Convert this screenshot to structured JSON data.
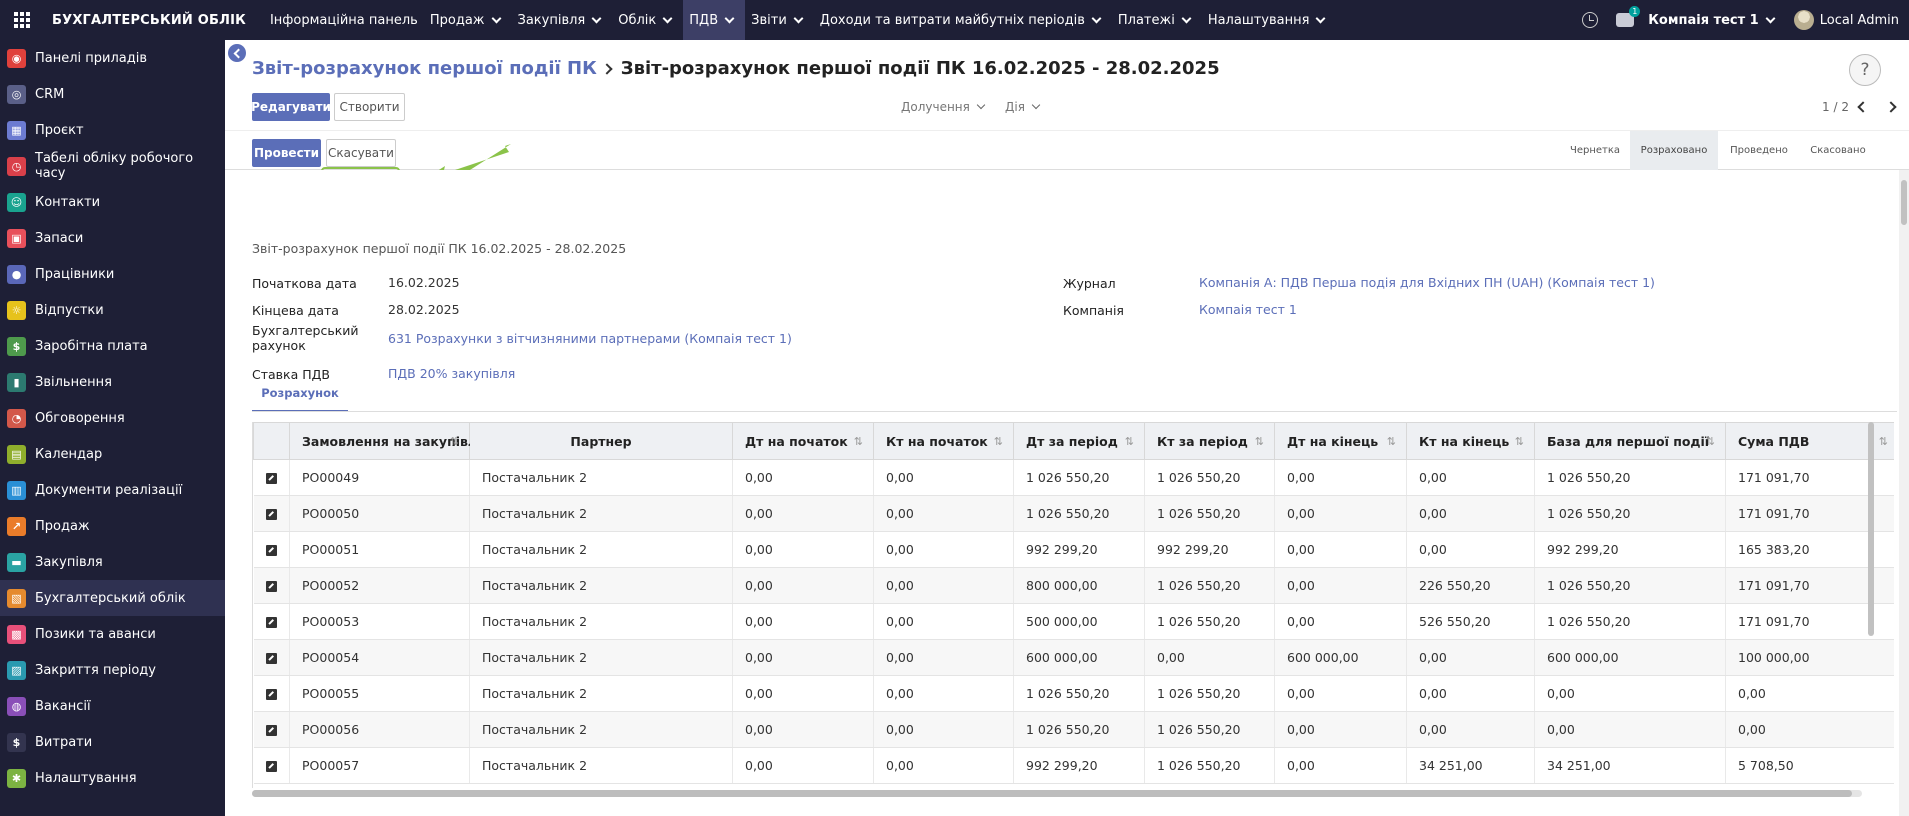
{
  "topbar": {
    "brand": "БУХГАЛТЕРСЬКИЙ ОБЛІК",
    "menu": [
      {
        "label": "Інформаційна панель",
        "has_dropdown": false
      },
      {
        "label": "Продаж",
        "has_dropdown": true
      },
      {
        "label": "Закупівля",
        "has_dropdown": true
      },
      {
        "label": "Облік",
        "has_dropdown": true
      },
      {
        "label": "ПДВ",
        "has_dropdown": true,
        "active": true
      },
      {
        "label": "Звіти",
        "has_dropdown": true
      },
      {
        "label": "Доходи та витрати майбутніх періодів",
        "has_dropdown": true
      },
      {
        "label": "Платежі",
        "has_dropdown": true
      },
      {
        "label": "Налаштування",
        "has_dropdown": true
      }
    ],
    "chat_badge": "1",
    "company": "Компаія тест 1",
    "user": "Local Admin"
  },
  "sidebar": {
    "items": [
      {
        "label": "Панелі приладів",
        "icon": "dashboard-icon",
        "color": "#e0413c"
      },
      {
        "label": "CRM",
        "icon": "crm-icon",
        "color": "#5a5f88"
      },
      {
        "label": "Проєкт",
        "icon": "project-icon",
        "color": "#6c7bd1"
      },
      {
        "label": "Табелі обліку робочого часу",
        "icon": "timesheet-icon",
        "color": "#d9404a"
      },
      {
        "label": "Контакти",
        "icon": "contacts-icon",
        "color": "#1aa38f"
      },
      {
        "label": "Запаси",
        "icon": "inventory-icon",
        "color": "#e8505b"
      },
      {
        "label": "Працівники",
        "icon": "employees-icon",
        "color": "#5a67b8"
      },
      {
        "label": "Відпустки",
        "icon": "time-off-icon",
        "color": "#e6c21c"
      },
      {
        "label": "Заробітна плата",
        "icon": "payroll-icon",
        "color": "#4e9a4c"
      },
      {
        "label": "Звільнення",
        "icon": "departure-icon",
        "color": "#2c7a70"
      },
      {
        "label": "Обговорення",
        "icon": "discuss-icon",
        "color": "#d3584a"
      },
      {
        "label": "Календар",
        "icon": "calendar-icon",
        "color": "#8fae2c"
      },
      {
        "label": "Документи реалізації",
        "icon": "documents-icon",
        "color": "#2a8fd6"
      },
      {
        "label": "Продаж",
        "icon": "sales-icon",
        "color": "#ea7c2a"
      },
      {
        "label": "Закупівля",
        "icon": "purchase-icon",
        "color": "#2aa3a3"
      },
      {
        "label": "Бухгалтерський облік",
        "icon": "accounting-icon",
        "color": "#e58a2e",
        "active": true
      },
      {
        "label": "Позики та аванси",
        "icon": "loans-icon",
        "color": "#e8507a"
      },
      {
        "label": "Закриття періоду",
        "icon": "period-close-icon",
        "color": "#2a9ab0"
      },
      {
        "label": "Вакансії",
        "icon": "recruitment-icon",
        "color": "#8a4fb8"
      },
      {
        "label": "Витрати",
        "icon": "expenses-icon",
        "color": "#33344f"
      },
      {
        "label": "Налаштування",
        "icon": "settings-icon",
        "color": "#7cb342"
      }
    ]
  },
  "breadcrumb": {
    "parent": "Звіт-розрахунок першої події ПК",
    "current": "Звіт-розрахунок першої події ПК 16.02.2025 - 28.02.2025"
  },
  "buttons": {
    "edit": "Редагувати",
    "create": "Створити",
    "attachments": "Долучення",
    "action": "Дія",
    "post": "Провести",
    "cancel": "Скасувати"
  },
  "pager": "1 / 2",
  "statuses": [
    "Чернетка",
    "Розраховано",
    "Проведено",
    "Скасовано"
  ],
  "current_status": "Розраховано",
  "form": {
    "title": "Звіт-розрахунок першої події ПК 16.02.2025 - 28.02.2025",
    "start_date_label": "Початкова дата",
    "start_date": "16.02.2025",
    "end_date_label": "Кінцева дата",
    "end_date": "28.02.2025",
    "account_label_1": "Бухгалтерський",
    "account_label_2": "рахунок",
    "account": "631 Розрахунки з вітчизняними партнерами (Компаія тест 1)",
    "vat_rate_label": "Ставка ПДВ",
    "vat_rate": "ПДВ 20% закупівля",
    "journal_label": "Журнал",
    "journal": "Компанія А: ПДВ Перша подія для Вхідних ПН (UAH) (Компаія тест 1)",
    "company_label": "Компанія",
    "company": "Компаія тест 1"
  },
  "tab": "Розрахунок",
  "table": {
    "headers": [
      "Замовлення на закупівлю",
      "Партнер",
      "Дт на початок",
      "Кт на початок",
      "Дт за період",
      "Кт за період",
      "Дт на кінець",
      "Кт на кінець",
      "База для першої події",
      "Сума ПДВ"
    ],
    "rows": [
      [
        "PO00049",
        "Постачальник 2",
        "0,00",
        "0,00",
        "1 026 550,20",
        "1 026 550,20",
        "0,00",
        "0,00",
        "1 026 550,20",
        "171 091,70"
      ],
      [
        "PO00050",
        "Постачальник 2",
        "0,00",
        "0,00",
        "1 026 550,20",
        "1 026 550,20",
        "0,00",
        "0,00",
        "1 026 550,20",
        "171 091,70"
      ],
      [
        "PO00051",
        "Постачальник 2",
        "0,00",
        "0,00",
        "992 299,20",
        "992 299,20",
        "0,00",
        "0,00",
        "992 299,20",
        "165 383,20"
      ],
      [
        "PO00052",
        "Постачальник 2",
        "0,00",
        "0,00",
        "800 000,00",
        "1 026 550,20",
        "0,00",
        "226 550,20",
        "1 026 550,20",
        "171 091,70"
      ],
      [
        "PO00053",
        "Постачальник 2",
        "0,00",
        "0,00",
        "500 000,00",
        "1 026 550,20",
        "0,00",
        "526 550,20",
        "1 026 550,20",
        "171 091,70"
      ],
      [
        "PO00054",
        "Постачальник 2",
        "0,00",
        "0,00",
        "600 000,00",
        "0,00",
        "600 000,00",
        "0,00",
        "600 000,00",
        "100 000,00"
      ],
      [
        "PO00055",
        "Постачальник 2",
        "0,00",
        "0,00",
        "1 026 550,20",
        "1 026 550,20",
        "0,00",
        "0,00",
        "0,00",
        "0,00"
      ],
      [
        "PO00056",
        "Постачальник 2",
        "0,00",
        "0,00",
        "1 026 550,20",
        "1 026 550,20",
        "0,00",
        "0,00",
        "0,00",
        "0,00"
      ],
      [
        "PO00057",
        "Постачальник 2",
        "0,00",
        "0,00",
        "992 299,20",
        "1 026 550,20",
        "0,00",
        "34 251,00",
        "34 251,00",
        "5 708,50"
      ]
    ]
  }
}
